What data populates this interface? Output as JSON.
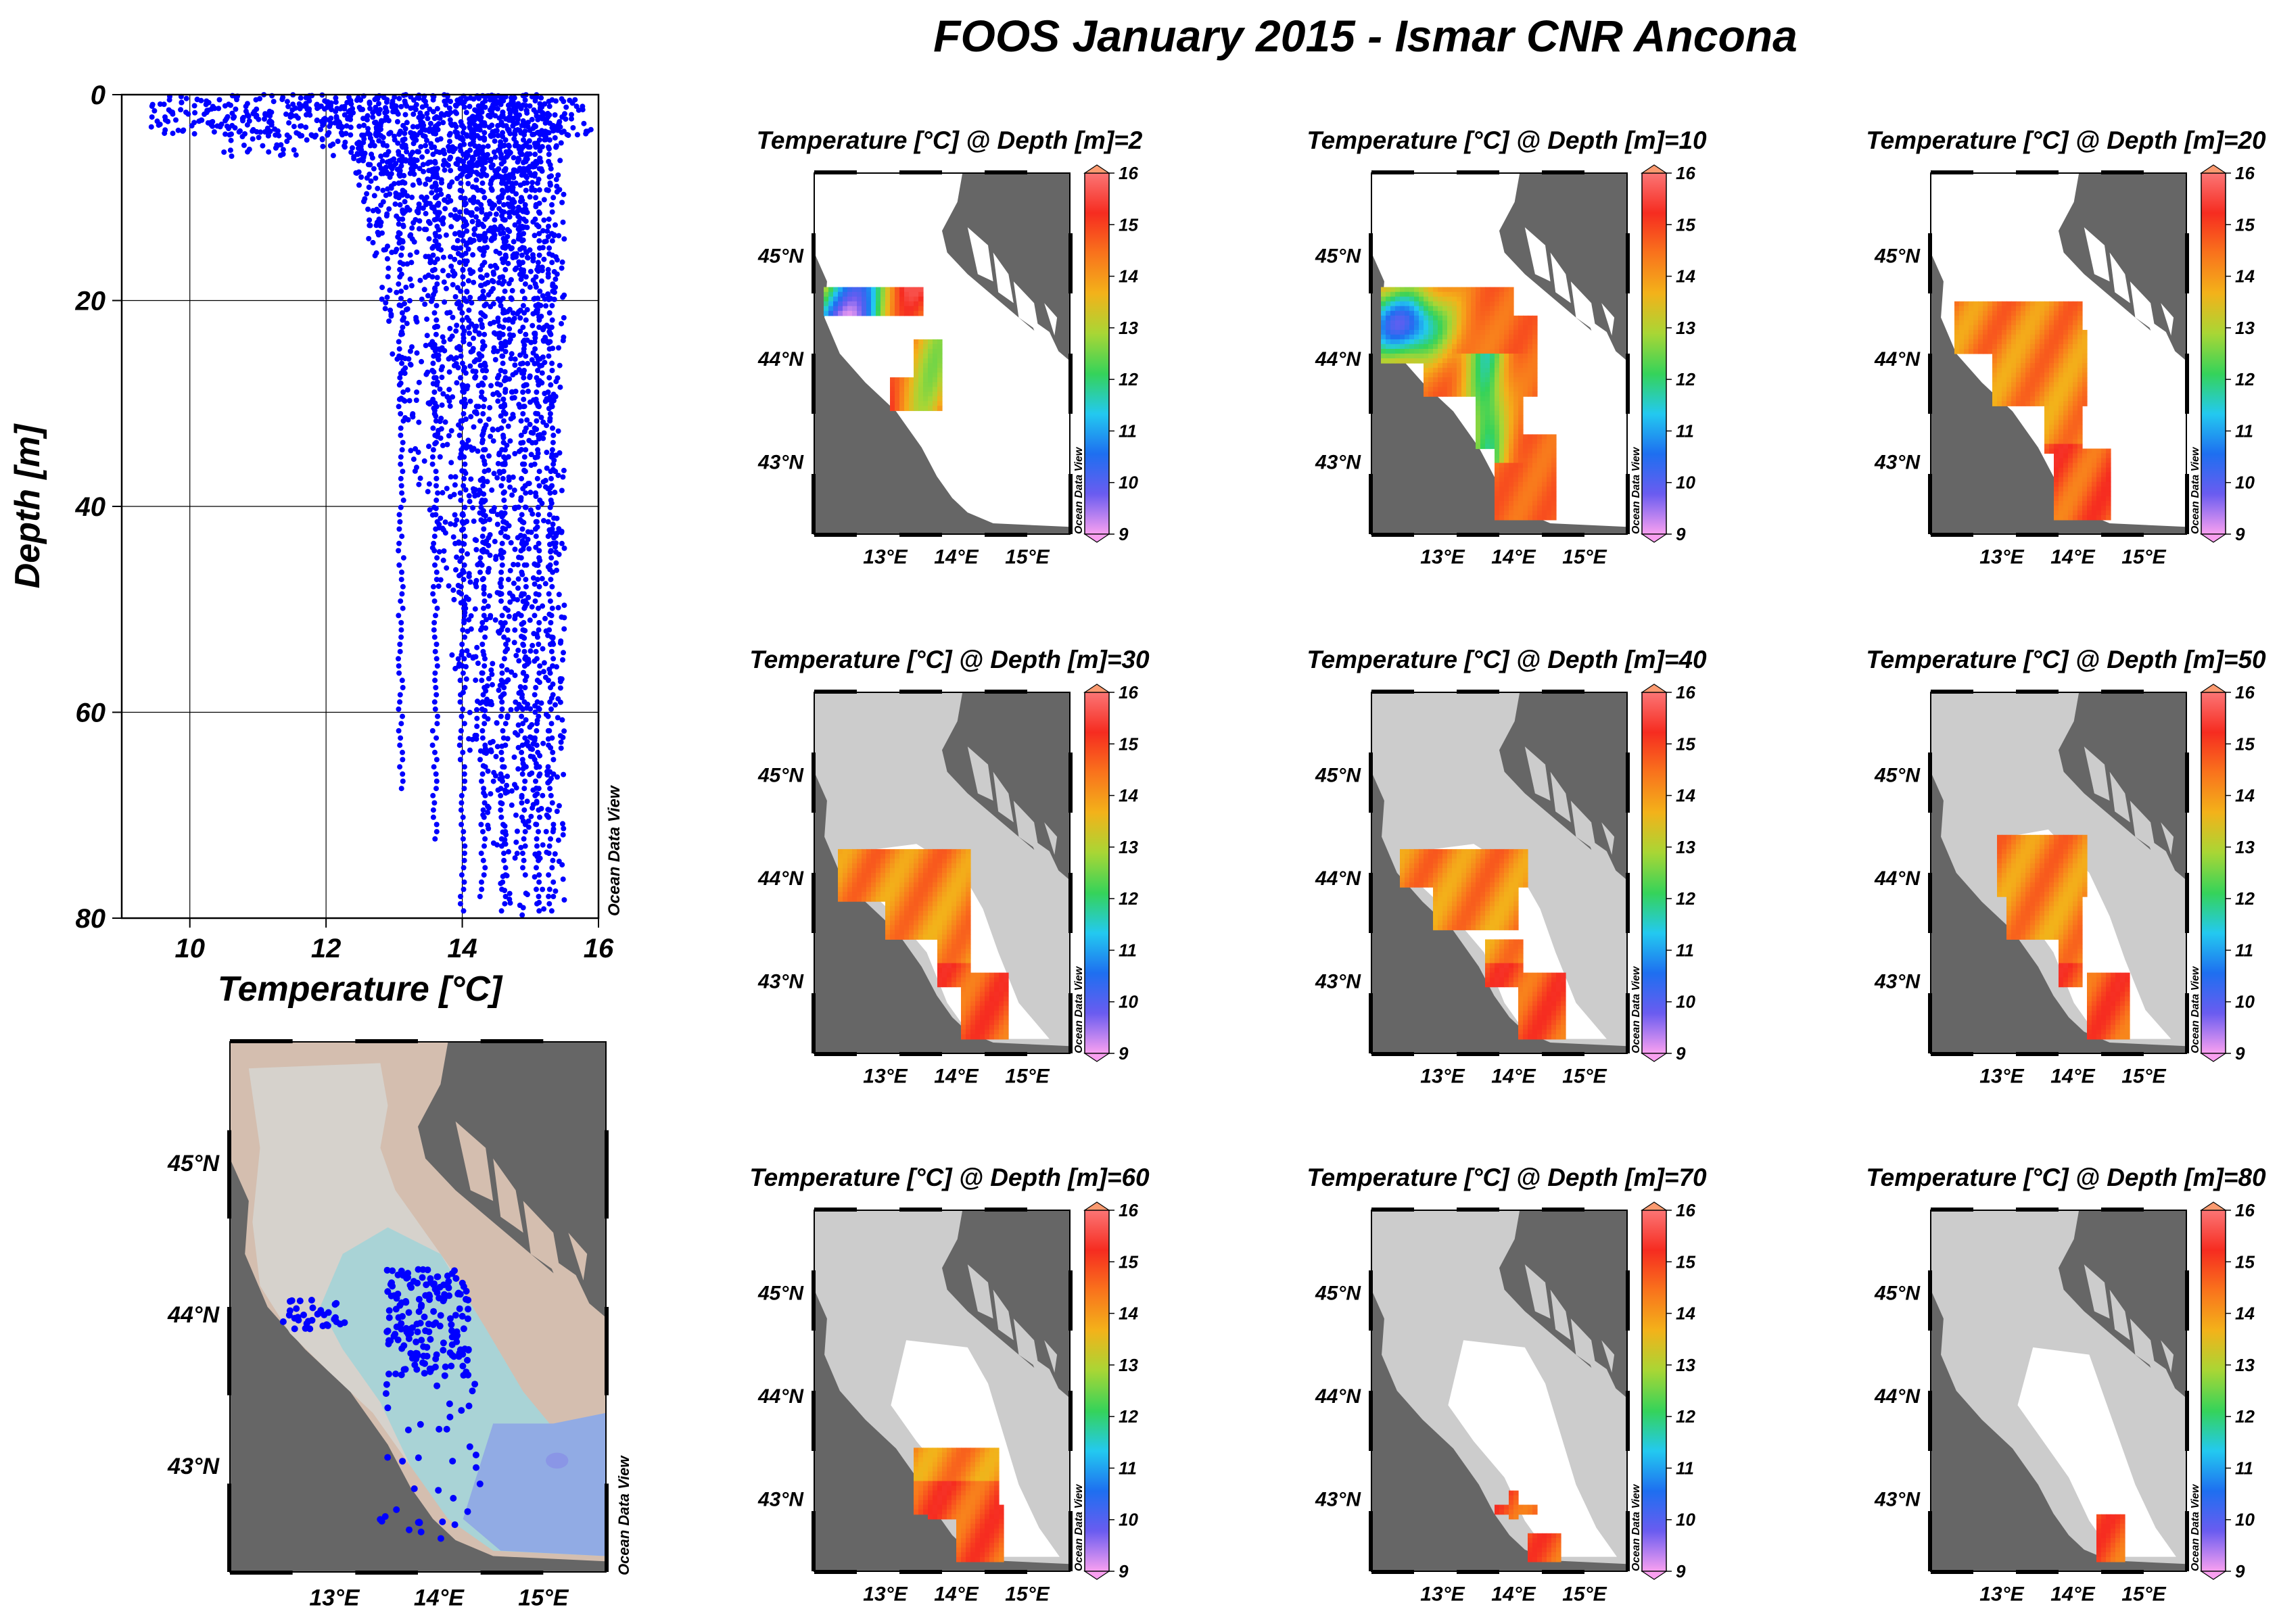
{
  "page": {
    "title": "FOOS January 2015 - Ismar CNR Ancona"
  },
  "watermark": "Ocean Data View",
  "colors": {
    "land": "#666666",
    "sea": "#ffffff",
    "shelf": "#cccccc",
    "points": "#0000ff",
    "bathy": [
      "#d4beaf",
      "#d6d2cc",
      "#a9d3d6",
      "#91abe4",
      "#8a96e6"
    ]
  },
  "map_ticks": {
    "lat": [
      "45°N",
      "44°N",
      "43°N"
    ],
    "lon": [
      "13°E",
      "14°E",
      "15°E"
    ]
  },
  "colorbar": {
    "ticks": [
      "16",
      "15",
      "14",
      "13",
      "12",
      "11",
      "10",
      "9"
    ],
    "range": [
      9,
      16
    ],
    "stops": [
      "#f9a0f0",
      "#6a5cf0",
      "#1e6ff0",
      "#23c9f0",
      "#35d35a",
      "#a9d635",
      "#f3b21a",
      "#f9731c",
      "#f62c20",
      "#fb7575"
    ]
  },
  "chart_data": [
    {
      "type": "scatter",
      "name": "profile",
      "xlabel": "Temperature [°C]",
      "ylabel": "Depth [m]",
      "xlim": [
        9,
        16
      ],
      "ylim": [
        80,
        0
      ],
      "y_inverted": true,
      "grid": true,
      "x_ticks": [
        "10",
        "12",
        "14",
        "16"
      ],
      "y_ticks": [
        "0",
        "20",
        "40",
        "60",
        "80"
      ],
      "profiles_summary": [
        {
          "t_min": 9.4,
          "t_max": 15.9,
          "depth_max": 4
        },
        {
          "t_min": 10.5,
          "t_max": 15.2,
          "depth_max": 8
        },
        {
          "t_min": 11.5,
          "t_max": 15.0,
          "depth_max": 16
        },
        {
          "t_min": 12.3,
          "t_max": 15.3,
          "depth_max": 30
        },
        {
          "t_min": 12.8,
          "t_max": 15.4,
          "depth_max": 45
        },
        {
          "t_min": 13.0,
          "t_max": 15.5,
          "depth_max": 68
        },
        {
          "t_min": 13.6,
          "t_max": 15.5,
          "depth_max": 73
        },
        {
          "t_min": 14.0,
          "t_max": 15.5,
          "depth_max": 80
        }
      ]
    },
    {
      "type": "scatter",
      "name": "station-map",
      "xlabel": "",
      "ylabel": "",
      "lon_range": [
        12.0,
        15.6
      ],
      "lat_range": [
        42.3,
        45.8
      ],
      "stations_summary": {
        "clusters": [
          {
            "lon_min": 13.5,
            "lon_max": 14.3,
            "lat_min": 43.6,
            "lat_max": 44.3,
            "count": 170
          },
          {
            "lon_min": 12.5,
            "lon_max": 13.1,
            "lat_min": 43.9,
            "lat_max": 44.1,
            "count": 35
          },
          {
            "lon_min": 13.4,
            "lon_max": 14.4,
            "lat_min": 42.5,
            "lat_max": 43.6,
            "count": 40
          }
        ]
      }
    },
    {
      "type": "heatmap",
      "panels": [
        {
          "title": "Temperature [°C] @ Depth [m]=2",
          "depth": 2
        },
        {
          "title": "Temperature [°C] @ Depth [m]=10",
          "depth": 10
        },
        {
          "title": "Temperature [°C] @ Depth [m]=20",
          "depth": 20
        },
        {
          "title": "Temperature [°C] @ Depth [m]=30",
          "depth": 30
        },
        {
          "title": "Temperature [°C] @ Depth [m]=40",
          "depth": 40
        },
        {
          "title": "Temperature [°C] @ Depth [m]=50",
          "depth": 50
        },
        {
          "title": "Temperature [°C] @ Depth [m]=60",
          "depth": 60
        },
        {
          "title": "Temperature [°C] @ Depth [m]=70",
          "depth": 70
        },
        {
          "title": "Temperature [°C] @ Depth [m]=80",
          "depth": 80
        }
      ]
    }
  ]
}
